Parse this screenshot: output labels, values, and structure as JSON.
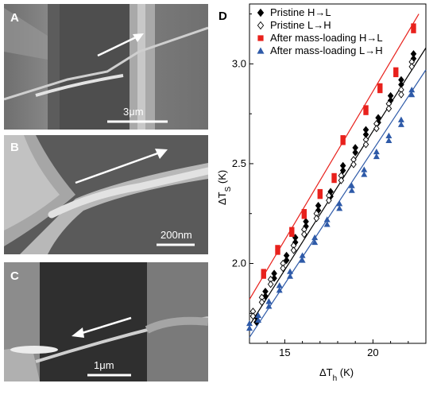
{
  "figure": {
    "panel_a": {
      "label": "A",
      "scale_bar": "3μm"
    },
    "panel_b": {
      "label": "B",
      "scale_bar": "200nm"
    },
    "panel_c": {
      "label": "C",
      "scale_bar": "1μm"
    },
    "panel_d": {
      "label": "D"
    }
  },
  "chart_data": {
    "type": "scatter",
    "xlabel": "ΔT",
    "xlabel_sub": "h",
    "xlabel_unit": " (K)",
    "ylabel": "ΔT",
    "ylabel_sub": "S",
    "ylabel_unit": " (K)",
    "xlim": [
      13,
      23
    ],
    "ylim": [
      1.6,
      3.3
    ],
    "xticks": [
      "15",
      "20"
    ],
    "yticks": [
      "2.0",
      "2.5",
      "3.0"
    ],
    "legend_position": "top-left",
    "series": [
      {
        "name": "Pristine H→L",
        "marker": "diamond-filled",
        "color": "#000000",
        "x": [
          13.4,
          13.9,
          14.4,
          15.1,
          15.6,
          16.2,
          16.9,
          17.6,
          18.3,
          19.0,
          19.6,
          20.3,
          21.0,
          21.6,
          22.3
        ],
        "y": [
          1.73,
          1.86,
          1.95,
          2.04,
          2.13,
          2.21,
          2.29,
          2.36,
          2.49,
          2.58,
          2.67,
          2.73,
          2.84,
          2.92,
          3.05
        ]
      },
      {
        "name": "Pristine L→H",
        "marker": "diamond-open",
        "color": "#000000",
        "x": [
          13.2,
          13.7,
          14.2,
          14.9,
          15.5,
          16.1,
          16.8,
          17.5,
          18.2,
          18.9,
          19.6,
          20.2,
          20.9,
          21.6,
          22.2
        ],
        "y": [
          1.76,
          1.83,
          1.92,
          2.0,
          2.09,
          2.17,
          2.25,
          2.34,
          2.44,
          2.52,
          2.62,
          2.7,
          2.8,
          2.87,
          3.01
        ]
      },
      {
        "name": "After mass-loading H→L",
        "marker": "square",
        "color": "#e8211c",
        "x": [
          13.8,
          14.6,
          15.4,
          16.1,
          17.0,
          17.8,
          18.3,
          19.6,
          20.4,
          21.3,
          22.3
        ],
        "y": [
          1.96,
          2.08,
          2.17,
          2.26,
          2.36,
          2.44,
          2.63,
          2.78,
          2.89,
          2.97,
          3.19
        ]
      },
      {
        "name": "After mass-loading L→H",
        "marker": "triangle",
        "color": "#2e5aa8",
        "x": [
          13.0,
          13.5,
          14.1,
          14.7,
          15.3,
          16.0,
          16.7,
          17.4,
          18.1,
          18.8,
          19.5,
          20.2,
          20.9,
          21.6,
          22.2
        ],
        "y": [
          1.7,
          1.74,
          1.81,
          1.89,
          1.96,
          2.04,
          2.13,
          2.22,
          2.3,
          2.39,
          2.47,
          2.56,
          2.64,
          2.72,
          2.87
        ]
      }
    ],
    "fit_lines": [
      {
        "color": "#000000",
        "x": [
          13.0,
          23.0
        ],
        "y": [
          1.69,
          3.08
        ]
      },
      {
        "color": "#e8211c",
        "x": [
          13.0,
          22.6
        ],
        "y": [
          1.82,
          3.25
        ]
      },
      {
        "color": "#2e5aa8",
        "x": [
          13.0,
          23.0
        ],
        "y": [
          1.63,
          2.97
        ]
      }
    ]
  }
}
